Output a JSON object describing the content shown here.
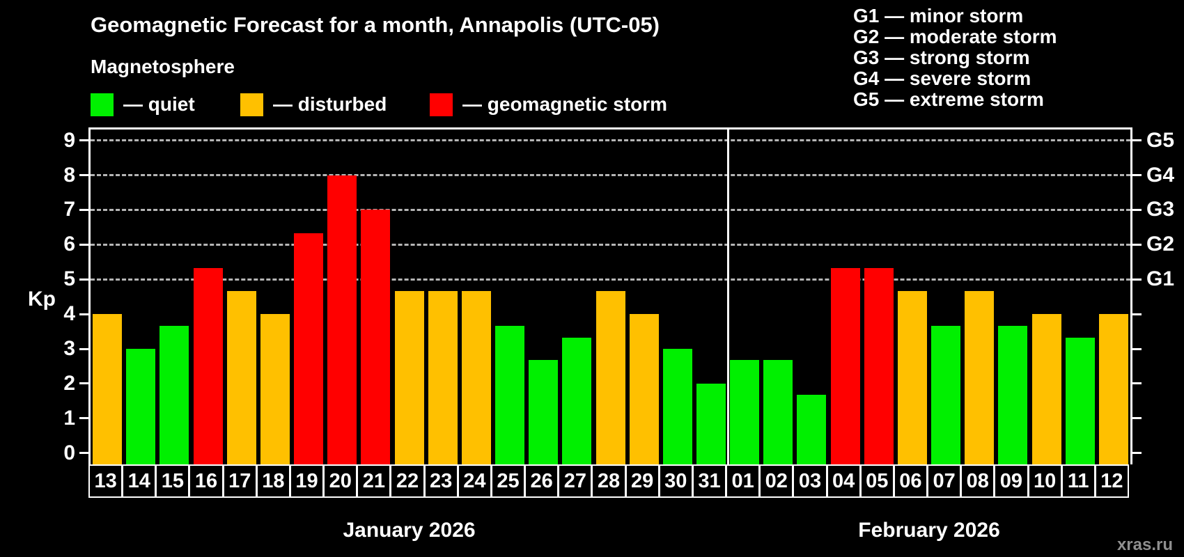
{
  "title": "Geomagnetic Forecast for a month, Annapolis (UTC-05)",
  "subtitle": "Magnetosphere",
  "legend": {
    "items": [
      {
        "state": "quiet",
        "label": "— quiet",
        "color": "#00f000"
      },
      {
        "state": "disturbed",
        "label": "— disturbed",
        "color": "#ffc000"
      },
      {
        "state": "storm",
        "label": "— geomagnetic storm",
        "color": "#ff0000"
      }
    ]
  },
  "storm_scale_legend": [
    "G1 — minor storm",
    "G2 — moderate storm",
    "G3 — strong storm",
    "G4 — severe storm",
    "G5 — extreme storm"
  ],
  "watermark": "xras.ru",
  "chart_data": {
    "type": "bar",
    "title": "Geomagnetic Forecast for a month, Annapolis (UTC-05)",
    "ylabel": "Kp",
    "ylim": [
      0,
      9
    ],
    "yticks": [
      0,
      1,
      2,
      3,
      4,
      5,
      6,
      7,
      8,
      9
    ],
    "gridlines_at": [
      5,
      6,
      7,
      8,
      9
    ],
    "grid": "dashed horizontal lines at storm levels G1–G5",
    "right_axis_labels": [
      {
        "label": "G1",
        "kp": 5
      },
      {
        "label": "G2",
        "kp": 6
      },
      {
        "label": "G3",
        "kp": 7
      },
      {
        "label": "G4",
        "kp": 8
      },
      {
        "label": "G5",
        "kp": 9
      }
    ],
    "months": [
      {
        "label": "January 2026",
        "days": 19
      },
      {
        "label": "February 2026",
        "days": 12
      }
    ],
    "categories": [
      "13",
      "14",
      "15",
      "16",
      "17",
      "18",
      "19",
      "20",
      "21",
      "22",
      "23",
      "24",
      "25",
      "26",
      "27",
      "28",
      "29",
      "30",
      "31",
      "01",
      "02",
      "03",
      "04",
      "05",
      "06",
      "07",
      "08",
      "09",
      "10",
      "11",
      "12"
    ],
    "values": [
      4.0,
      3.0,
      3.67,
      5.33,
      4.67,
      4.0,
      6.33,
      8.0,
      7.0,
      4.67,
      4.67,
      4.67,
      3.67,
      2.67,
      3.33,
      4.67,
      4.0,
      3.0,
      2.0,
      2.67,
      2.67,
      1.67,
      5.33,
      5.33,
      4.67,
      3.67,
      4.67,
      3.67,
      4.0,
      3.33,
      4.0
    ],
    "states": [
      "disturbed",
      "quiet",
      "quiet",
      "storm",
      "disturbed",
      "disturbed",
      "storm",
      "storm",
      "storm",
      "disturbed",
      "disturbed",
      "disturbed",
      "quiet",
      "quiet",
      "quiet",
      "disturbed",
      "disturbed",
      "quiet",
      "quiet",
      "quiet",
      "quiet",
      "quiet",
      "storm",
      "storm",
      "disturbed",
      "quiet",
      "disturbed",
      "quiet",
      "disturbed",
      "quiet",
      "disturbed"
    ],
    "colors": {
      "quiet": "#00f000",
      "disturbed": "#ffc000",
      "storm": "#ff0000"
    }
  }
}
